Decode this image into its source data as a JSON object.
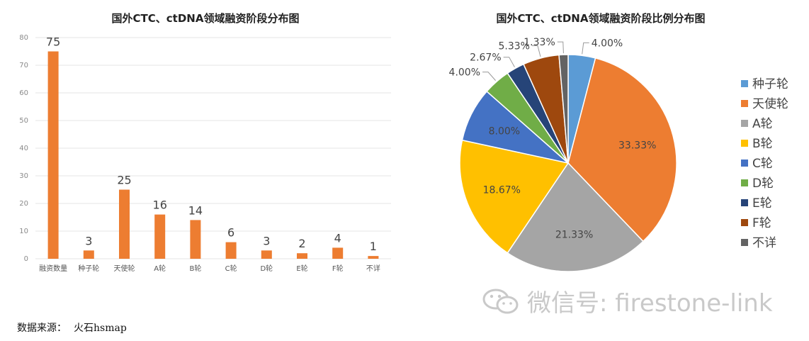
{
  "colors": {
    "bar": "#ed7d31",
    "grid": "#e4e4e4",
    "pie": [
      "#5b9bd5",
      "#ed7d31",
      "#a5a5a5",
      "#ffc000",
      "#4472c4",
      "#70ad47",
      "#264478",
      "#9e480e",
      "#636363"
    ]
  },
  "chart_data": [
    {
      "type": "bar",
      "title": "国外CTC、ctDNA领域融资阶段分布图",
      "categories": [
        "融资数量",
        "种子轮",
        "天使轮",
        "A轮",
        "B轮",
        "C轮",
        "D轮",
        "E轮",
        "F轮",
        "不详"
      ],
      "values": [
        75,
        3,
        25,
        16,
        14,
        6,
        3,
        2,
        4,
        1
      ],
      "ylim": [
        0,
        80
      ],
      "yticks": [
        0,
        10,
        20,
        30,
        40,
        50,
        60,
        70,
        80
      ],
      "grid": true,
      "xlabel": "",
      "ylabel": ""
    },
    {
      "type": "pie",
      "title": "国外CTC、ctDNA领域融资阶段比例分布图",
      "labels": [
        "种子轮",
        "天使轮",
        "A轮",
        "B轮",
        "C轮",
        "D轮",
        "E轮",
        "F轮",
        "不详"
      ],
      "values": [
        4.0,
        33.33,
        21.33,
        18.67,
        8.0,
        4.0,
        2.67,
        5.33,
        1.33
      ],
      "value_labels": [
        "4.00%",
        "33.33%",
        "21.33%",
        "18.67%",
        "8.00%",
        "4.00%",
        "2.67%",
        "5.33%",
        "1.33%"
      ],
      "legend_position": "right"
    }
  ],
  "source": {
    "label": "数据来源：",
    "value": "火石hsmap"
  },
  "watermark": {
    "text": "微信号: firestone-link",
    "icon": "wechat-icon"
  }
}
